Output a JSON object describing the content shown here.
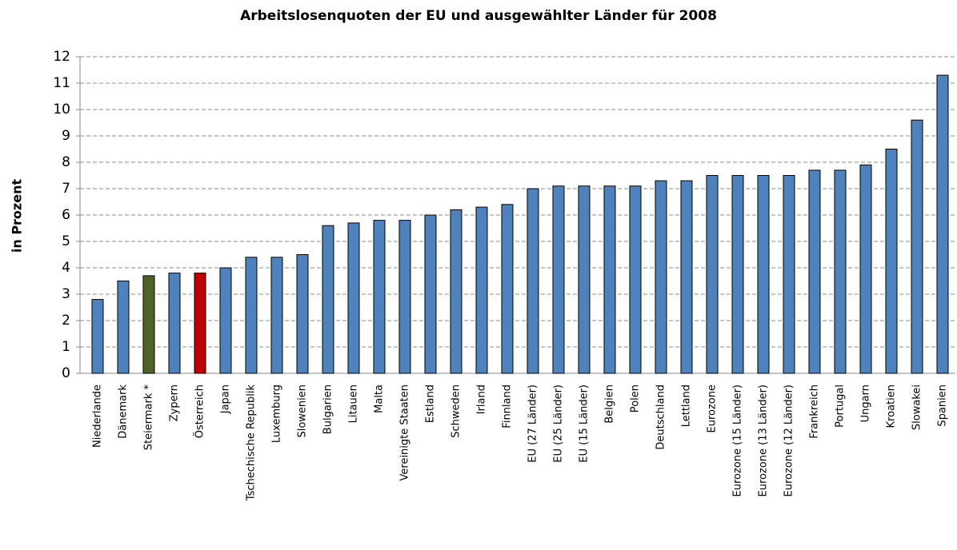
{
  "chart_data": {
    "type": "bar",
    "title": "Arbeitslosenquoten der EU und ausgewählter Länder für 2008",
    "y_label": "in Prozent",
    "categories": [
      "Niederlande",
      "Dänemark",
      "Steiermark *",
      "Zypern",
      "Österreich",
      "Japan",
      "Tschechische Republik",
      "Luxemburg",
      "Slowenien",
      "Bulgarien",
      "Litauen",
      "Malta",
      "Vereinigte Staaten",
      "Estland",
      "Schweden",
      "Irland",
      "Finnland",
      "EU (27 Länder)",
      "EU (25 Länder)",
      "EU (15 Länder)",
      "Belgien",
      "Polen",
      "Deutschland",
      "Lettland",
      "Eurozone",
      "Eurozone (15 Länder)",
      "Eurozone (13 Länder)",
      "Eurozone (12 Länder)",
      "Frankreich",
      "Portugal",
      "Ungarn",
      "Kroatien",
      "Slowakei",
      "Spanien"
    ],
    "values": [
      2.8,
      3.5,
      3.7,
      3.8,
      3.8,
      4.0,
      4.4,
      4.4,
      4.5,
      5.6,
      5.7,
      5.8,
      5.8,
      6.0,
      6.2,
      6.3,
      6.4,
      7.0,
      7.1,
      7.1,
      7.1,
      7.1,
      7.3,
      7.3,
      7.5,
      7.5,
      7.5,
      7.5,
      7.7,
      7.7,
      7.9,
      8.5,
      9.6,
      11.3
    ],
    "colors": [
      "#4f81bd",
      "#4f81bd",
      "#4f6228",
      "#4f81bd",
      "#c00000",
      "#4f81bd",
      "#4f81bd",
      "#4f81bd",
      "#4f81bd",
      "#4f81bd",
      "#4f81bd",
      "#4f81bd",
      "#4f81bd",
      "#4f81bd",
      "#4f81bd",
      "#4f81bd",
      "#4f81bd",
      "#4f81bd",
      "#4f81bd",
      "#4f81bd",
      "#4f81bd",
      "#4f81bd",
      "#4f81bd",
      "#4f81bd",
      "#4f81bd",
      "#4f81bd",
      "#4f81bd",
      "#4f81bd",
      "#4f81bd",
      "#4f81bd",
      "#4f81bd",
      "#4f81bd",
      "#4f81bd",
      "#4f81bd"
    ],
    "ylim": [
      0,
      12
    ],
    "yticks": [
      0,
      1,
      2,
      3,
      4,
      5,
      6,
      7,
      8,
      9,
      10,
      11,
      12
    ],
    "grid": true
  }
}
